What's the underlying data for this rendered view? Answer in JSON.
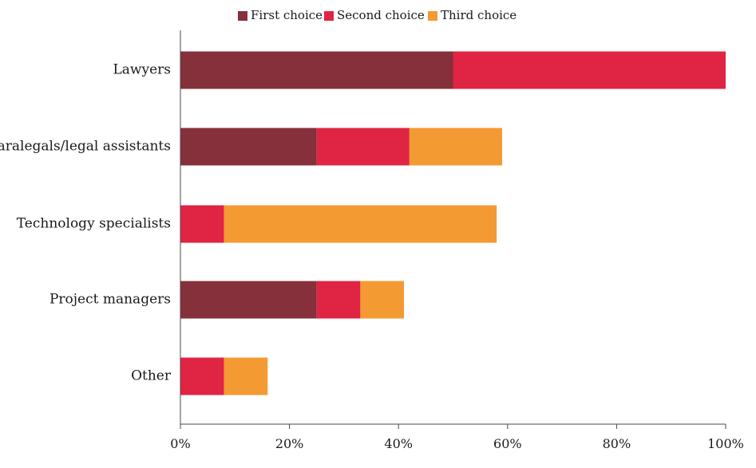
{
  "chart_data": {
    "type": "bar",
    "orientation": "horizontal",
    "stacked": true,
    "categories": [
      "Lawyers",
      "Paralegals/legal assistants",
      "Technology specialists",
      "Project managers",
      "Other"
    ],
    "series": [
      {
        "name": "First choice",
        "color": "#85303a",
        "values": [
          50,
          25,
          0,
          25,
          0
        ]
      },
      {
        "name": "Second choice",
        "color": "#e02444",
        "values": [
          50,
          17,
          8,
          8,
          8
        ]
      },
      {
        "name": "Third choice",
        "color": "#f39a33",
        "values": [
          0,
          17,
          50,
          8,
          8
        ]
      }
    ],
    "xlim": [
      0,
      100
    ],
    "x_ticks": [
      0,
      20,
      40,
      60,
      80,
      100
    ],
    "x_tick_labels": [
      "0%",
      "20%",
      "40%",
      "60%",
      "80%",
      "100%"
    ],
    "title": "",
    "xlabel": "",
    "ylabel": "",
    "grid": false,
    "legend_position": "top-center"
  }
}
